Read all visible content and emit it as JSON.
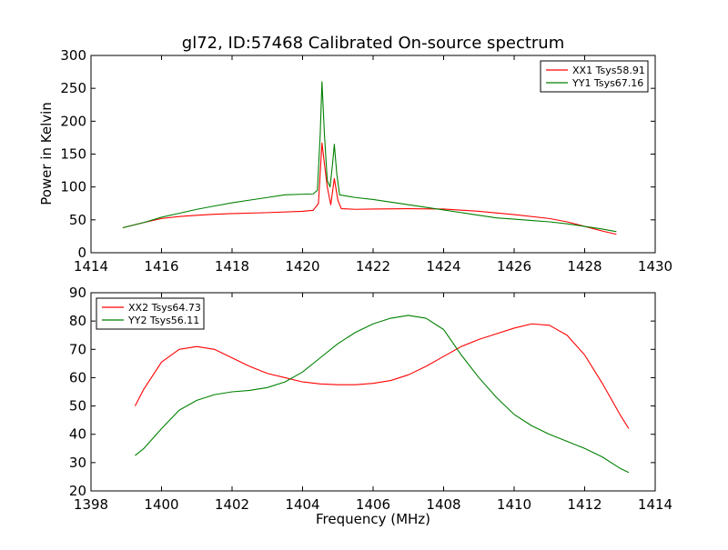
{
  "chart_data": [
    {
      "type": "line",
      "title": "gl72, ID:57468 Calibrated On-source spectrum",
      "xlabel": "",
      "ylabel": "Power in Kelvin",
      "xlim": [
        1414,
        1430
      ],
      "ylim": [
        0,
        300
      ],
      "xticks": [
        1414,
        1416,
        1418,
        1420,
        1422,
        1424,
        1426,
        1428,
        1430
      ],
      "yticks": [
        0,
        50,
        100,
        150,
        200,
        250,
        300
      ],
      "legend_position": "top-right",
      "series": [
        {
          "name": "XX1 Tsys58.91",
          "color": "#ff0000",
          "points": [
            [
              1414.9,
              38
            ],
            [
              1415.5,
              46
            ],
            [
              1416,
              52
            ],
            [
              1416.5,
              55
            ],
            [
              1417,
              57
            ],
            [
              1417.5,
              58.5
            ],
            [
              1418,
              59.5
            ],
            [
              1419,
              61
            ],
            [
              1420,
              63
            ],
            [
              1420.3,
              64.5
            ],
            [
              1420.45,
              75
            ],
            [
              1420.55,
              167
            ],
            [
              1420.62,
              135
            ],
            [
              1420.7,
              100
            ],
            [
              1420.8,
              73
            ],
            [
              1420.9,
              113
            ],
            [
              1421,
              80
            ],
            [
              1421.1,
              67
            ],
            [
              1421.5,
              66
            ],
            [
              1422,
              66.5
            ],
            [
              1423,
              67
            ],
            [
              1424,
              66.5
            ],
            [
              1425,
              63
            ],
            [
              1426,
              58
            ],
            [
              1427,
              52
            ],
            [
              1427.5,
              47
            ],
            [
              1428,
              40
            ],
            [
              1428.5,
              33
            ],
            [
              1428.9,
              28
            ]
          ]
        },
        {
          "name": "YY1 Tsys67.16",
          "color": "#008000",
          "points": [
            [
              1414.9,
              38
            ],
            [
              1415.5,
              46
            ],
            [
              1416,
              54
            ],
            [
              1416.5,
              60
            ],
            [
              1417,
              66
            ],
            [
              1417.5,
              71
            ],
            [
              1418,
              76
            ],
            [
              1418.5,
              80
            ],
            [
              1419,
              84
            ],
            [
              1419.5,
              88
            ],
            [
              1420,
              89
            ],
            [
              1420.3,
              89.5
            ],
            [
              1420.42,
              95
            ],
            [
              1420.5,
              180
            ],
            [
              1420.55,
              260
            ],
            [
              1420.62,
              180
            ],
            [
              1420.7,
              110
            ],
            [
              1420.78,
              100
            ],
            [
              1420.85,
              135
            ],
            [
              1420.9,
              165
            ],
            [
              1420.97,
              120
            ],
            [
              1421.05,
              88
            ],
            [
              1421.5,
              84
            ],
            [
              1422,
              81
            ],
            [
              1422.5,
              77
            ],
            [
              1423,
              73
            ],
            [
              1423.5,
              69
            ],
            [
              1424,
              65
            ],
            [
              1424.5,
              61
            ],
            [
              1425,
              57
            ],
            [
              1425.5,
              53
            ],
            [
              1426,
              51
            ],
            [
              1426.5,
              49
            ],
            [
              1427,
              47
            ],
            [
              1427.5,
              44
            ],
            [
              1428,
              40
            ],
            [
              1428.5,
              36
            ],
            [
              1428.9,
              32
            ]
          ]
        }
      ]
    },
    {
      "type": "line",
      "title": "",
      "xlabel": "Frequency (MHz)",
      "ylabel": "",
      "xlim": [
        1398,
        1414
      ],
      "ylim": [
        20,
        90
      ],
      "xticks": [
        1398,
        1400,
        1402,
        1404,
        1406,
        1408,
        1410,
        1412,
        1414
      ],
      "yticks": [
        20,
        30,
        40,
        50,
        60,
        70,
        80,
        90
      ],
      "legend_position": "top-left",
      "series": [
        {
          "name": "XX2 Tsys64.73",
          "color": "#ff0000",
          "points": [
            [
              1399.25,
              50
            ],
            [
              1399.5,
              56
            ],
            [
              1400,
              65.5
            ],
            [
              1400.5,
              70
            ],
            [
              1401,
              71
            ],
            [
              1401.5,
              70
            ],
            [
              1402,
              67
            ],
            [
              1402.5,
              64
            ],
            [
              1403,
              61.5
            ],
            [
              1403.5,
              60
            ],
            [
              1404,
              58.5
            ],
            [
              1404.5,
              57.8
            ],
            [
              1405,
              57.5
            ],
            [
              1405.5,
              57.5
            ],
            [
              1406,
              58
            ],
            [
              1406.5,
              59
            ],
            [
              1407,
              61
            ],
            [
              1407.5,
              64
            ],
            [
              1408,
              67.5
            ],
            [
              1408.5,
              71
            ],
            [
              1409,
              73.5
            ],
            [
              1409.5,
              75.5
            ],
            [
              1410,
              77.5
            ],
            [
              1410.5,
              79
            ],
            [
              1411,
              78.5
            ],
            [
              1411.5,
              75
            ],
            [
              1412,
              68
            ],
            [
              1412.5,
              58
            ],
            [
              1413,
              47
            ],
            [
              1413.25,
              42
            ]
          ]
        },
        {
          "name": "YY2 Tsys56.11",
          "color": "#008000",
          "points": [
            [
              1399.25,
              32.5
            ],
            [
              1399.5,
              35
            ],
            [
              1400,
              42
            ],
            [
              1400.5,
              48.5
            ],
            [
              1401,
              52
            ],
            [
              1401.5,
              54
            ],
            [
              1402,
              55
            ],
            [
              1402.5,
              55.5
            ],
            [
              1403,
              56.5
            ],
            [
              1403.5,
              58.5
            ],
            [
              1404,
              62
            ],
            [
              1404.5,
              67
            ],
            [
              1405,
              72
            ],
            [
              1405.5,
              76
            ],
            [
              1406,
              79
            ],
            [
              1406.5,
              81
            ],
            [
              1407,
              82
            ],
            [
              1407.5,
              81
            ],
            [
              1408,
              77
            ],
            [
              1408.5,
              68
            ],
            [
              1409,
              60
            ],
            [
              1409.5,
              53
            ],
            [
              1410,
              47
            ],
            [
              1410.5,
              43
            ],
            [
              1411,
              40
            ],
            [
              1411.5,
              37.5
            ],
            [
              1412,
              35
            ],
            [
              1412.5,
              32
            ],
            [
              1413,
              28
            ],
            [
              1413.25,
              26.5
            ]
          ]
        }
      ]
    }
  ]
}
